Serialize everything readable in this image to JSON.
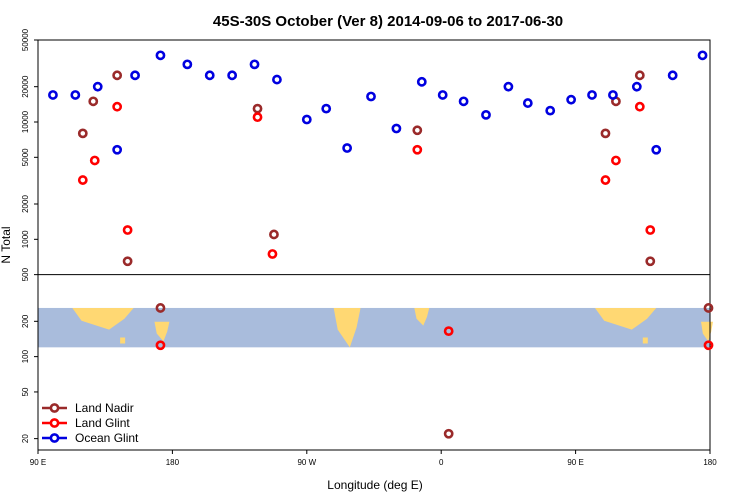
{
  "chart_data": {
    "type": "scatter",
    "title": "45S-30S October (Ver 8)   2014-09-06 to 2017-06-30",
    "xlabel": "Longitude (deg E)",
    "ylabel": "N Total",
    "y_scale": "log",
    "ylim": [
      16,
      50000
    ],
    "x_domain_deg_east": [
      90,
      420
    ],
    "x_ticks": [
      {
        "value": 90,
        "label": "90 E"
      },
      {
        "value": 180,
        "label": "180"
      },
      {
        "value": 270,
        "label": "90 W"
      },
      {
        "value": 360,
        "label": "0"
      },
      {
        "value": 450,
        "label": "90 E"
      },
      {
        "value": 540,
        "label": "180"
      }
    ],
    "y_ticks": [
      {
        "value": 20,
        "label": "20"
      },
      {
        "value": 50,
        "label": "50"
      },
      {
        "value": 100,
        "label": "100"
      },
      {
        "value": 200,
        "label": "200"
      },
      {
        "value": 500,
        "label": "500"
      },
      {
        "value": 1000,
        "label": "1000"
      },
      {
        "value": 2000,
        "label": "2000"
      },
      {
        "value": 5000,
        "label": "5000"
      },
      {
        "value": 10000,
        "label": "10000"
      },
      {
        "value": 20000,
        "label": "20000"
      },
      {
        "value": 50000,
        "label": "50000"
      }
    ],
    "divider_value": 500,
    "series": [
      {
        "name": "Land Nadir",
        "color": "#9a2a2a",
        "points": [
          [
            120,
            8000
          ],
          [
            127,
            15000
          ],
          [
            143,
            25000
          ],
          [
            150,
            650
          ],
          [
            172,
            260
          ],
          [
            237,
            13000
          ],
          [
            248,
            1100
          ],
          [
            344,
            8500
          ],
          [
            365,
            22
          ],
          [
            470,
            8000
          ],
          [
            477,
            15000
          ],
          [
            493,
            25000
          ],
          [
            500,
            650
          ],
          [
            539,
            260
          ]
        ]
      },
      {
        "name": "Land Glint",
        "color": "#ff0000",
        "points": [
          [
            120,
            3200
          ],
          [
            128,
            4700
          ],
          [
            143,
            13500
          ],
          [
            150,
            1200
          ],
          [
            172,
            125
          ],
          [
            237,
            11000
          ],
          [
            247,
            750
          ],
          [
            344,
            5800
          ],
          [
            365,
            165
          ],
          [
            470,
            3200
          ],
          [
            477,
            4700
          ],
          [
            493,
            13500
          ],
          [
            500,
            1200
          ],
          [
            539,
            125
          ]
        ]
      },
      {
        "name": "Ocean Glint",
        "color": "#0000e0",
        "points": [
          [
            100,
            17000
          ],
          [
            115,
            17000
          ],
          [
            130,
            20000
          ],
          [
            143,
            5800
          ],
          [
            155,
            25000
          ],
          [
            172,
            37000
          ],
          [
            190,
            31000
          ],
          [
            205,
            25000
          ],
          [
            220,
            25000
          ],
          [
            235,
            31000
          ],
          [
            250,
            23000
          ],
          [
            270,
            10500
          ],
          [
            283,
            13000
          ],
          [
            297,
            6000
          ],
          [
            313,
            16500
          ],
          [
            330,
            8800
          ],
          [
            347,
            22000
          ],
          [
            361,
            17000
          ],
          [
            375,
            15000
          ],
          [
            390,
            11500
          ],
          [
            405,
            20000
          ],
          [
            418,
            14500
          ],
          [
            433,
            12500
          ],
          [
            447,
            15500
          ],
          [
            461,
            17000
          ],
          [
            475,
            17000
          ],
          [
            491,
            20000
          ],
          [
            504,
            5800
          ],
          [
            515,
            25000
          ],
          [
            535,
            37000
          ]
        ]
      }
    ],
    "legend_position": "bottom-left",
    "map_band_range": [
      120,
      260
    ],
    "map_colors": {
      "ocean": "#a9bcdc",
      "land": "#ffd873"
    }
  }
}
